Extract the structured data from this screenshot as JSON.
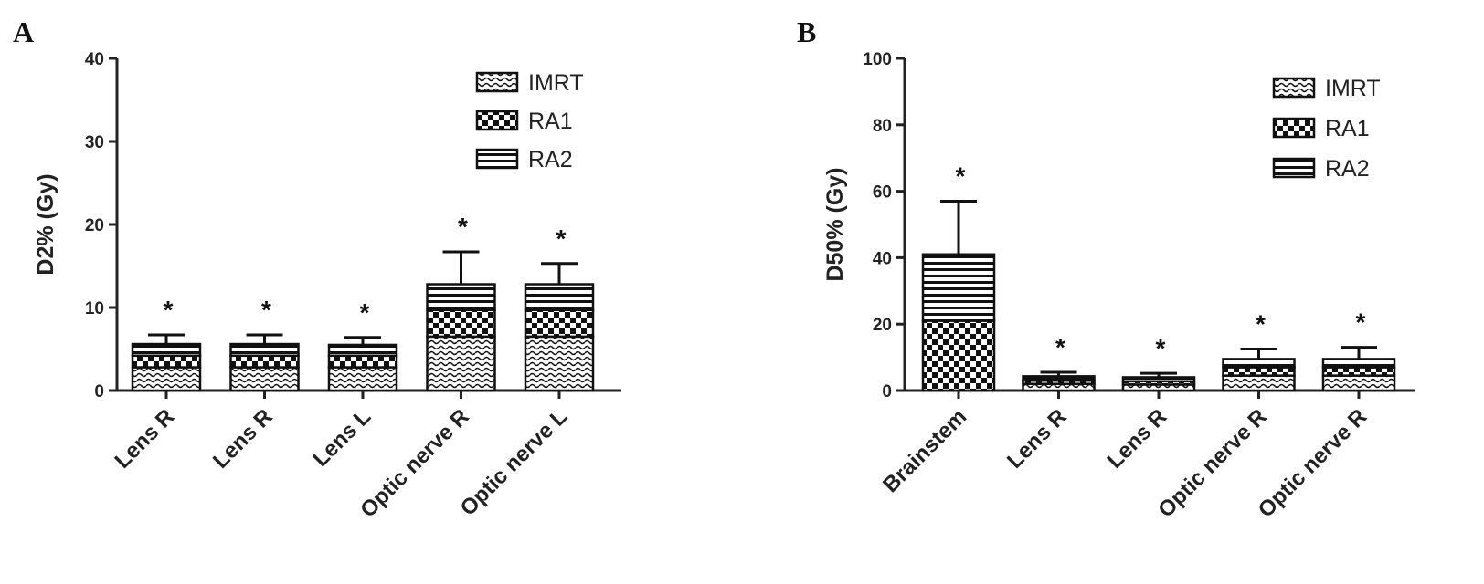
{
  "colors": {
    "ink": "#111111",
    "background": "#ffffff"
  },
  "legend_patterns": {
    "IMRT": "wave",
    "RA1": "checker",
    "RA2": "hstripes"
  },
  "chart_data": [
    {
      "panel": "A",
      "type": "bar",
      "stacked": true,
      "ylabel": "D2% (Gy)",
      "ylim": [
        0,
        40
      ],
      "yticks": [
        0,
        10,
        20,
        30,
        40
      ],
      "legend_position": "top-right",
      "categories": [
        "Lens R",
        "Lens R",
        "Lens L",
        "Optic nerve R",
        "Optic nerve L"
      ],
      "series": [
        {
          "name": "IMRT",
          "values": [
            2.8,
            2.8,
            2.8,
            6.5,
            6.5
          ]
        },
        {
          "name": "RA1",
          "values": [
            1.4,
            1.4,
            1.4,
            3.2,
            3.2
          ]
        },
        {
          "name": "RA2",
          "values": [
            1.4,
            1.4,
            1.3,
            3.1,
            3.1
          ]
        }
      ],
      "error_bars": [
        6.7,
        6.7,
        6.4,
        16.7,
        15.3
      ],
      "annotations": [
        "*",
        "*",
        "*",
        "*",
        "*"
      ]
    },
    {
      "panel": "B",
      "type": "bar",
      "stacked": true,
      "ylabel": "D50% (Gy)",
      "ylim": [
        0,
        100
      ],
      "yticks": [
        0,
        20,
        40,
        60,
        80,
        100
      ],
      "legend_position": "top-right",
      "categories": [
        "Brainstem",
        "Lens R",
        "Lens R",
        "Optic nerve R",
        "Optic nerve R"
      ],
      "series": [
        {
          "name": "IMRT",
          "values": [
            0,
            2.0,
            1.8,
            4.5,
            4.5
          ]
        },
        {
          "name": "RA1",
          "values": [
            21,
            1.0,
            1.0,
            2.5,
            2.5
          ]
        },
        {
          "name": "RA2",
          "values": [
            20,
            1.3,
            1.2,
            2.5,
            2.5
          ]
        }
      ],
      "error_bars": [
        57,
        5.5,
        5.2,
        12.5,
        13
      ],
      "annotations": [
        "*",
        "*",
        "*",
        "*",
        "*"
      ]
    }
  ]
}
